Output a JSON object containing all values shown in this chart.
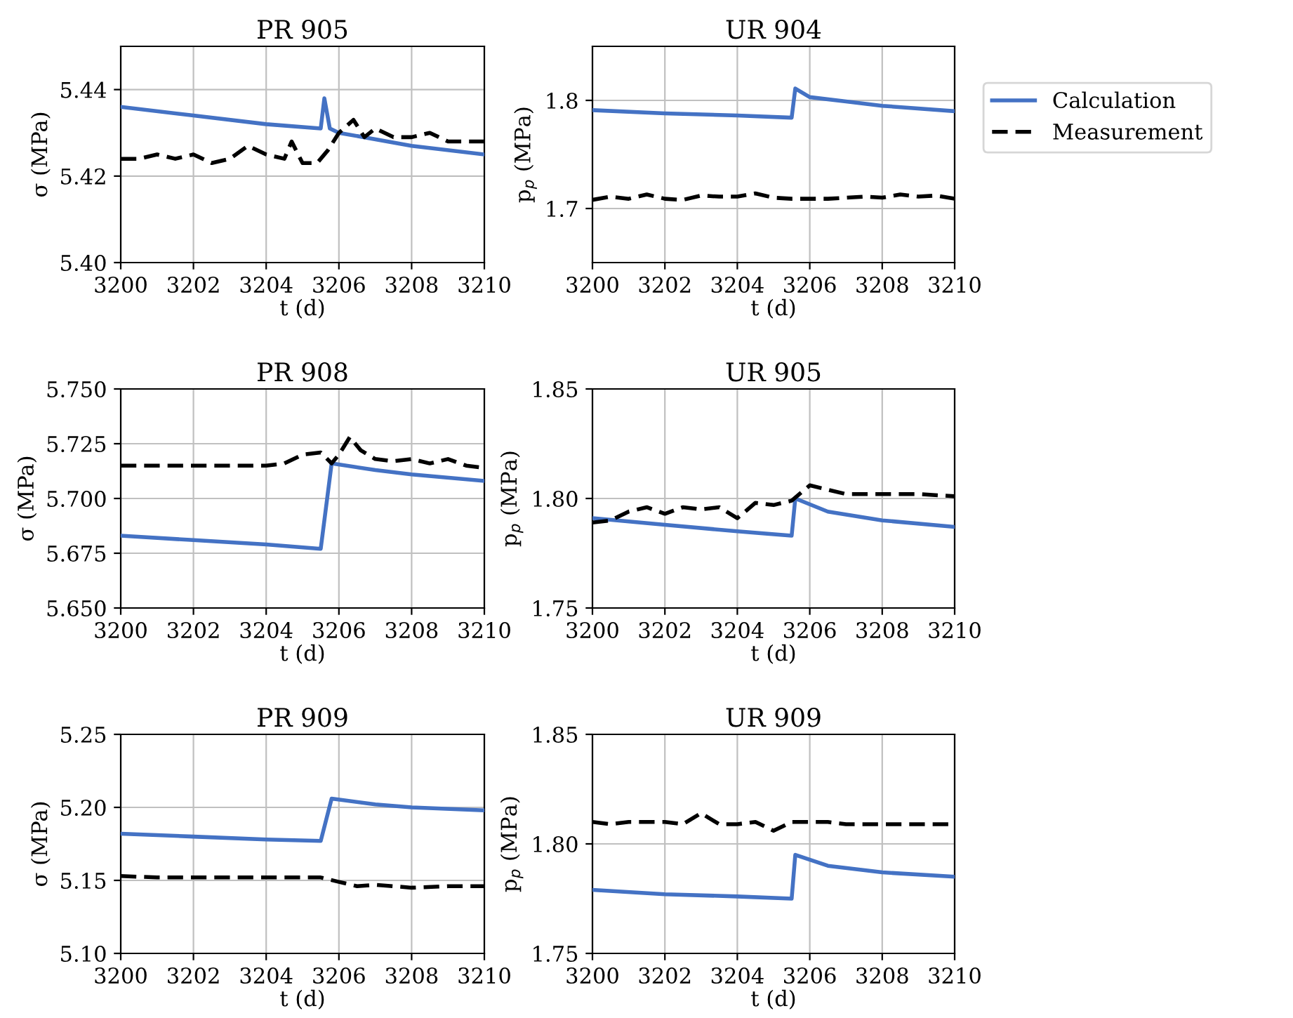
{
  "chart_data": [
    {
      "type": "line",
      "title": "PR 905",
      "xlabel": "t (d)",
      "ylabel": "σ (MPa)",
      "xlim": [
        3200,
        3210
      ],
      "xticks": [
        3200,
        3202,
        3204,
        3206,
        3208,
        3210
      ],
      "ylim": [
        5.4,
        5.45
      ],
      "yticks": [
        {
          "value": 5.4,
          "label": "5.40"
        },
        {
          "value": 5.42,
          "label": "5.42"
        },
        {
          "value": 5.44,
          "label": "5.44"
        }
      ],
      "grid": true,
      "series": [
        {
          "color": "#4472c4",
          "line_style": "solid",
          "x": [
            3200,
            3202,
            3204,
            3205.5,
            3205.6,
            3205.75,
            3206,
            3208,
            3210
          ],
          "values": [
            5.436,
            5.434,
            5.432,
            5.431,
            5.438,
            5.431,
            5.43,
            5.427,
            5.425
          ]
        },
        {
          "color": "#000000",
          "line_style": "dashed",
          "x": [
            3200,
            3200.5,
            3201,
            3201.5,
            3202,
            3202.5,
            3203,
            3203.5,
            3204,
            3204.5,
            3204.7,
            3205,
            3205.4,
            3205.7,
            3206,
            3206.4,
            3206.7,
            3207,
            3207.5,
            3208,
            3208.5,
            3209,
            3209.5,
            3210
          ],
          "values": [
            5.424,
            5.424,
            5.425,
            5.424,
            5.425,
            5.423,
            5.424,
            5.427,
            5.425,
            5.424,
            5.428,
            5.423,
            5.423,
            5.426,
            5.43,
            5.433,
            5.429,
            5.431,
            5.429,
            5.429,
            5.43,
            5.428,
            5.428,
            5.428
          ]
        }
      ]
    },
    {
      "type": "line",
      "title": "UR 904",
      "xlabel": "t (d)",
      "ylabel": "p$_{p}$ (MPa)",
      "xlim": [
        3200,
        3210
      ],
      "xticks": [
        3200,
        3202,
        3204,
        3206,
        3208,
        3210
      ],
      "ylim": [
        1.65,
        1.85
      ],
      "yticks": [
        1.7,
        1.8
      ],
      "grid": true,
      "legend": "right",
      "series": [
        {
          "name": "Calculation",
          "color": "#4472c4",
          "line_style": "solid",
          "x": [
            3200,
            3202,
            3204,
            3205.5,
            3205.6,
            3206,
            3207,
            3208,
            3210
          ],
          "values": [
            1.791,
            1.788,
            1.786,
            1.784,
            1.811,
            1.803,
            1.799,
            1.795,
            1.79
          ]
        },
        {
          "name": "Measurement",
          "color": "#000000",
          "line_style": "dashed",
          "x": [
            3200,
            3200.5,
            3201,
            3201.5,
            3202,
            3202.5,
            3203,
            3203.5,
            3204,
            3204.5,
            3205,
            3205.5,
            3206,
            3206.5,
            3207,
            3207.5,
            3208,
            3208.5,
            3209,
            3209.5,
            3210
          ],
          "values": [
            1.708,
            1.711,
            1.709,
            1.713,
            1.709,
            1.708,
            1.712,
            1.711,
            1.711,
            1.714,
            1.71,
            1.709,
            1.709,
            1.709,
            1.71,
            1.711,
            1.71,
            1.713,
            1.711,
            1.712,
            1.709
          ]
        }
      ]
    },
    {
      "type": "line",
      "title": "PR 908",
      "xlabel": "t (d)",
      "ylabel": "σ (MPa)",
      "xlim": [
        3200,
        3210
      ],
      "xticks": [
        3200,
        3202,
        3204,
        3206,
        3208,
        3210
      ],
      "ylim": [
        5.65,
        5.75
      ],
      "yticks": [
        {
          "value": 5.65,
          "label": "5.650"
        },
        {
          "value": 5.675,
          "label": "5.675"
        },
        {
          "value": 5.7,
          "label": "5.700"
        },
        {
          "value": 5.725,
          "label": "5.725"
        },
        {
          "value": 5.75,
          "label": "5.750"
        }
      ],
      "grid": true,
      "series": [
        {
          "color": "#4472c4",
          "line_style": "solid",
          "x": [
            3200,
            3202,
            3204,
            3205.5,
            3205.8,
            3207,
            3208,
            3210
          ],
          "values": [
            5.683,
            5.681,
            5.679,
            5.677,
            5.716,
            5.713,
            5.711,
            5.708
          ]
        },
        {
          "color": "#000000",
          "line_style": "dashed",
          "x": [
            3200,
            3201,
            3202,
            3203,
            3204,
            3204.5,
            3205,
            3205.5,
            3205.8,
            3206,
            3206.3,
            3206.6,
            3207,
            3207.5,
            3208,
            3208.5,
            3209,
            3209.5,
            3210
          ],
          "values": [
            5.715,
            5.715,
            5.715,
            5.715,
            5.715,
            5.716,
            5.72,
            5.721,
            5.716,
            5.72,
            5.728,
            5.722,
            5.718,
            5.717,
            5.718,
            5.716,
            5.718,
            5.715,
            5.714
          ]
        }
      ]
    },
    {
      "type": "line",
      "title": "UR 905",
      "xlabel": "t (d)",
      "ylabel": "p$_{p}$ (MPa)",
      "xlim": [
        3200,
        3210
      ],
      "xticks": [
        3200,
        3202,
        3204,
        3206,
        3208,
        3210
      ],
      "ylim": [
        1.75,
        1.85
      ],
      "yticks": [
        {
          "value": 1.75,
          "label": "1.75"
        },
        {
          "value": 1.8,
          "label": "1.80"
        },
        {
          "value": 1.85,
          "label": "1.85"
        }
      ],
      "grid": true,
      "series": [
        {
          "color": "#4472c4",
          "line_style": "solid",
          "x": [
            3200,
            3202,
            3204,
            3205.5,
            3205.6,
            3206.5,
            3208,
            3210
          ],
          "values": [
            1.791,
            1.788,
            1.785,
            1.783,
            1.8,
            1.794,
            1.79,
            1.787
          ]
        },
        {
          "color": "#000000",
          "line_style": "dashed",
          "x": [
            3200,
            3200.5,
            3201,
            3201.5,
            3202,
            3202.5,
            3203,
            3203.5,
            3204,
            3204.5,
            3205,
            3205.5,
            3206,
            3206.5,
            3207,
            3208,
            3209,
            3210
          ],
          "values": [
            1.789,
            1.79,
            1.794,
            1.796,
            1.793,
            1.796,
            1.795,
            1.796,
            1.791,
            1.798,
            1.797,
            1.799,
            1.806,
            1.804,
            1.802,
            1.802,
            1.802,
            1.801
          ]
        }
      ]
    },
    {
      "type": "line",
      "title": "PR 909",
      "xlabel": "t (d)",
      "ylabel": "σ (MPa)",
      "xlim": [
        3200,
        3210
      ],
      "xticks": [
        3200,
        3202,
        3204,
        3206,
        3208,
        3210
      ],
      "ylim": [
        5.1,
        5.25
      ],
      "yticks": [
        {
          "value": 5.1,
          "label": "5.10"
        },
        {
          "value": 5.15,
          "label": "5.15"
        },
        {
          "value": 5.2,
          "label": "5.20"
        },
        {
          "value": 5.25,
          "label": "5.25"
        }
      ],
      "grid": true,
      "series": [
        {
          "color": "#4472c4",
          "line_style": "solid",
          "x": [
            3200,
            3202,
            3204,
            3205.5,
            3205.8,
            3207,
            3208,
            3210
          ],
          "values": [
            5.182,
            5.18,
            5.178,
            5.177,
            5.206,
            5.202,
            5.2,
            5.198
          ]
        },
        {
          "color": "#000000",
          "line_style": "dashed",
          "x": [
            3200,
            3201,
            3202,
            3203,
            3204,
            3205,
            3205.5,
            3206,
            3206.5,
            3207,
            3208,
            3209,
            3210
          ],
          "values": [
            5.153,
            5.152,
            5.152,
            5.152,
            5.152,
            5.152,
            5.152,
            5.149,
            5.146,
            5.147,
            5.145,
            5.146,
            5.146
          ]
        }
      ]
    },
    {
      "type": "line",
      "title": "UR 909",
      "xlabel": "t (d)",
      "ylabel": "p$_{p}$ (MPa)",
      "xlim": [
        3200,
        3210
      ],
      "xticks": [
        3200,
        3202,
        3204,
        3206,
        3208,
        3210
      ],
      "ylim": [
        1.75,
        1.85
      ],
      "yticks": [
        {
          "value": 1.75,
          "label": "1.75"
        },
        {
          "value": 1.8,
          "label": "1.80"
        },
        {
          "value": 1.85,
          "label": "1.85"
        }
      ],
      "grid": true,
      "series": [
        {
          "color": "#4472c4",
          "line_style": "solid",
          "x": [
            3200,
            3202,
            3204,
            3205.5,
            3205.6,
            3206.5,
            3208,
            3210
          ],
          "values": [
            1.779,
            1.777,
            1.776,
            1.775,
            1.795,
            1.79,
            1.787,
            1.785
          ]
        },
        {
          "color": "#000000",
          "line_style": "dashed",
          "x": [
            3200,
            3200.5,
            3201,
            3201.5,
            3202,
            3202.5,
            3203,
            3203.5,
            3204,
            3204.5,
            3205,
            3205.5,
            3206,
            3206.5,
            3207,
            3208,
            3209,
            3210
          ],
          "values": [
            1.81,
            1.809,
            1.81,
            1.81,
            1.81,
            1.809,
            1.814,
            1.809,
            1.809,
            1.81,
            1.806,
            1.81,
            1.81,
            1.81,
            1.809,
            1.809,
            1.809,
            1.809
          ]
        }
      ]
    }
  ]
}
